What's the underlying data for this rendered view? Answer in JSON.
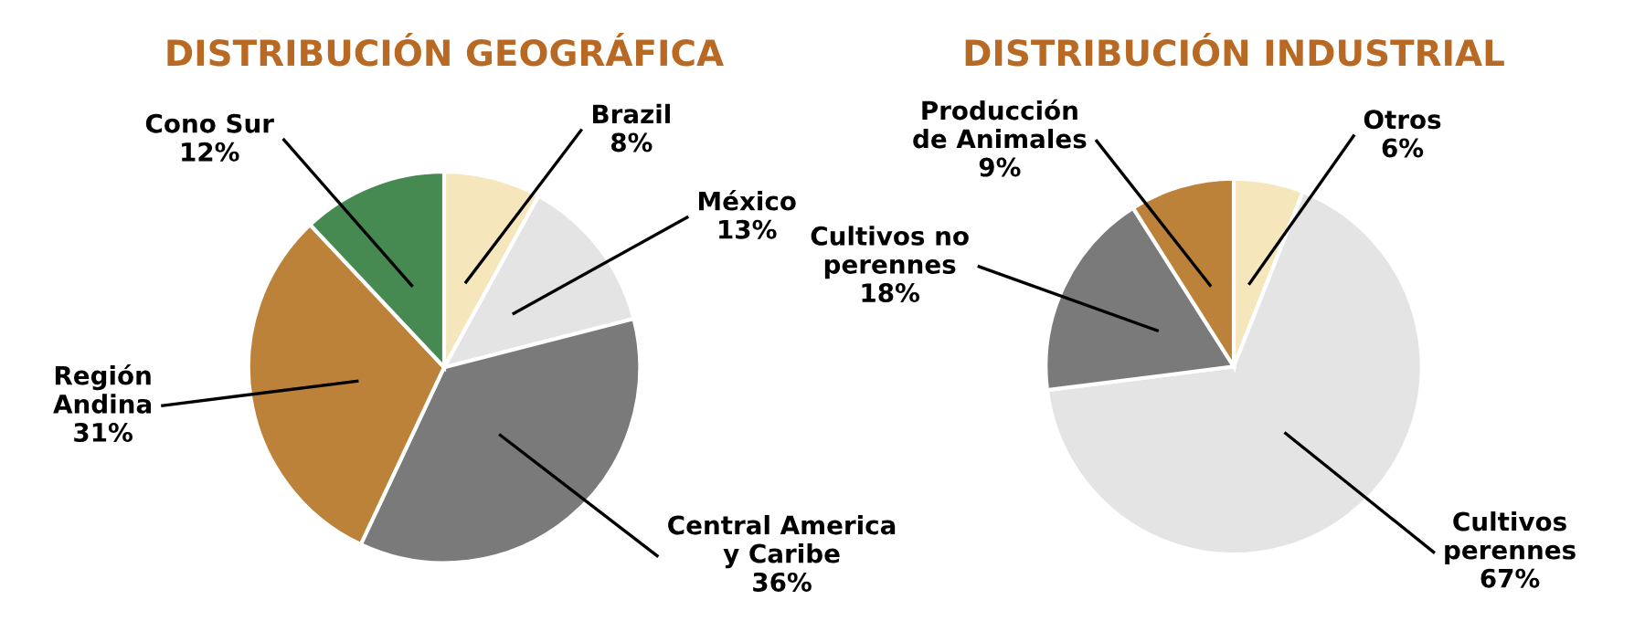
{
  "chart_data": [
    {
      "type": "pie",
      "title": "DISTRIBUCIÓN GEOGRÁFICA",
      "categories": [
        "Brazil",
        "México",
        "Central America\ny Caribe",
        "Región\nAndina",
        "Cono Sur"
      ],
      "values": [
        8,
        13,
        36,
        31,
        12
      ],
      "value_labels": [
        "8%",
        "13%",
        "36%",
        "31%",
        "12%"
      ],
      "colors": [
        "#f5e6bb",
        "#e4e4e4",
        "#7a7a7a",
        "#bd823a",
        "#468a52"
      ]
    },
    {
      "type": "pie",
      "title": "DISTRIBUCIÓN INDUSTRIAL",
      "categories": [
        "Otros",
        "Cultivos\nperennes",
        "Cultivos no\nperennes",
        "Producción\nde Animales"
      ],
      "values": [
        6,
        67,
        18,
        9
      ],
      "value_labels": [
        "6%",
        "67%",
        "18%",
        "9%"
      ],
      "colors": [
        "#f5e6bb",
        "#e4e4e4",
        "#7a7a7a",
        "#bd823a"
      ]
    }
  ]
}
